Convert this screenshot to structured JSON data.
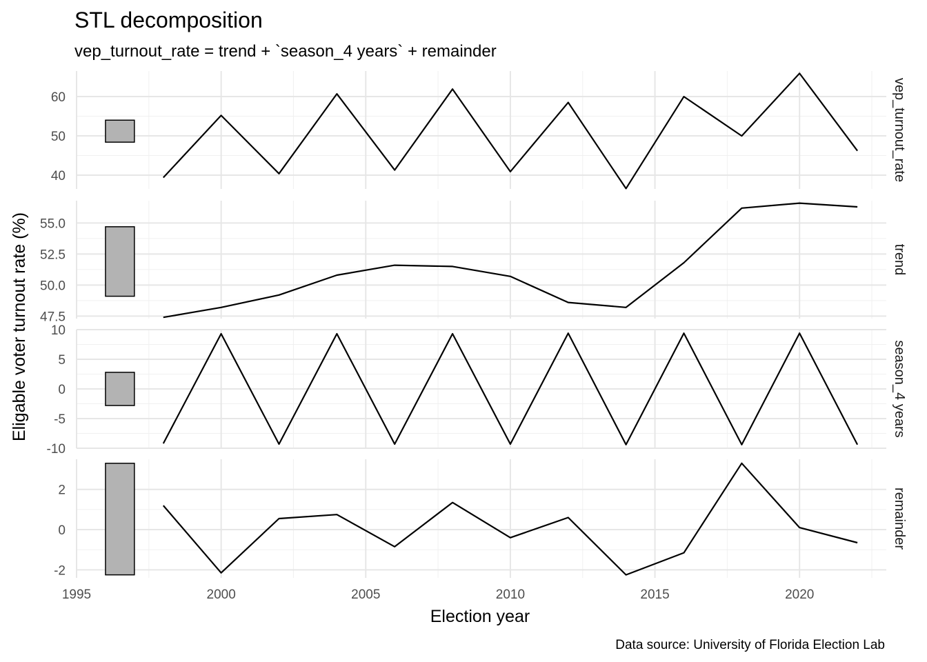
{
  "chart_data": {
    "type": "line",
    "title": "STL decomposition",
    "subtitle": "vep_turnout_rate = trend + `season_4 years` + remainder",
    "xlabel": "Election year",
    "ylabel": "Eligable voter turnout rate (%)",
    "caption": "Data source: University of Florida Election Lab",
    "xlim": [
      1995,
      2023
    ],
    "x_ticks": [
      1995,
      2000,
      2005,
      2010,
      2015,
      2020
    ],
    "x_tick_labels": [
      "1995",
      "2000",
      "2005",
      "2010",
      "2015",
      "2020"
    ],
    "x": [
      1998,
      2000,
      2002,
      2004,
      2006,
      2008,
      2010,
      2012,
      2014,
      2016,
      2018,
      2020,
      2022
    ],
    "grid": true,
    "panels": [
      {
        "name": "vep_turnout_rate",
        "ylim": [
          36.5,
          66.5
        ],
        "y_ticks": [
          40,
          50,
          60
        ],
        "y_tick_labels": [
          "40",
          "50",
          "60"
        ],
        "values": [
          39.4,
          55.2,
          40.4,
          60.7,
          41.3,
          61.9,
          40.9,
          58.5,
          36.6,
          60.0,
          50.0,
          65.9,
          46.2
        ],
        "scale_bar": [
          48.4,
          54.0
        ]
      },
      {
        "name": "trend",
        "ylim": [
          47.3,
          56.8
        ],
        "y_ticks": [
          47.5,
          50.0,
          52.5,
          55.0
        ],
        "y_tick_labels": [
          "47.5",
          "50.0",
          "52.5",
          "55.0"
        ],
        "values": [
          47.4,
          48.2,
          49.2,
          50.8,
          51.6,
          51.5,
          50.7,
          48.6,
          48.2,
          51.8,
          56.2,
          56.6,
          56.3
        ],
        "scale_bar": [
          49.1,
          54.7
        ]
      },
      {
        "name": "season_4 years",
        "ylim": [
          -10.0,
          10.0
        ],
        "y_ticks": [
          -10,
          -5,
          0,
          5,
          10
        ],
        "y_tick_labels": [
          "-10",
          "-5",
          "0",
          "5",
          "10"
        ],
        "values": [
          -9.2,
          9.3,
          -9.3,
          9.3,
          -9.3,
          9.3,
          -9.3,
          9.4,
          -9.4,
          9.4,
          -9.4,
          9.4,
          -9.4
        ],
        "scale_bar": [
          -2.8,
          2.8
        ]
      },
      {
        "name": "remainder",
        "ylim": [
          -2.4,
          3.5
        ],
        "y_ticks": [
          -2,
          0,
          2
        ],
        "y_tick_labels": [
          "-2",
          "0",
          "2"
        ],
        "values": [
          1.2,
          -2.15,
          0.55,
          0.75,
          -0.85,
          1.35,
          -0.4,
          0.6,
          -2.25,
          -1.15,
          3.3,
          0.1,
          -0.65
        ],
        "scale_bar": [
          -2.25,
          3.3
        ]
      }
    ]
  }
}
